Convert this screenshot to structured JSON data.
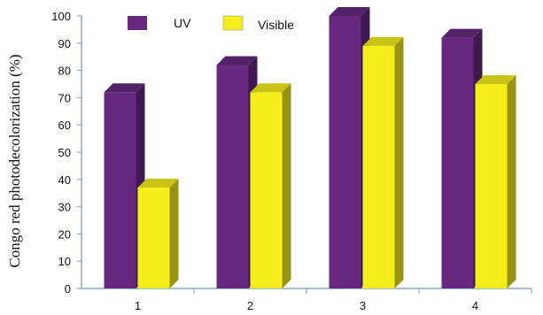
{
  "chart_data": {
    "type": "bar",
    "categories": [
      "1",
      "2",
      "3",
      "4"
    ],
    "series": [
      {
        "name": "UV",
        "values": [
          72,
          82,
          100,
          92
        ],
        "color": "#66297f"
      },
      {
        "name": "Visible",
        "values": [
          37,
          72,
          89,
          75
        ],
        "color": "#f5ee1b"
      }
    ],
    "ylabel": "Congo red photodecolorization (%)",
    "xlabel": "",
    "ylim": [
      0,
      100
    ],
    "yticks": [
      "0",
      "10",
      "20",
      "30",
      "40",
      "50",
      "60",
      "70",
      "80",
      "90",
      "100"
    ],
    "legend_position": "top-left",
    "grid": false,
    "style": "3d-column"
  }
}
